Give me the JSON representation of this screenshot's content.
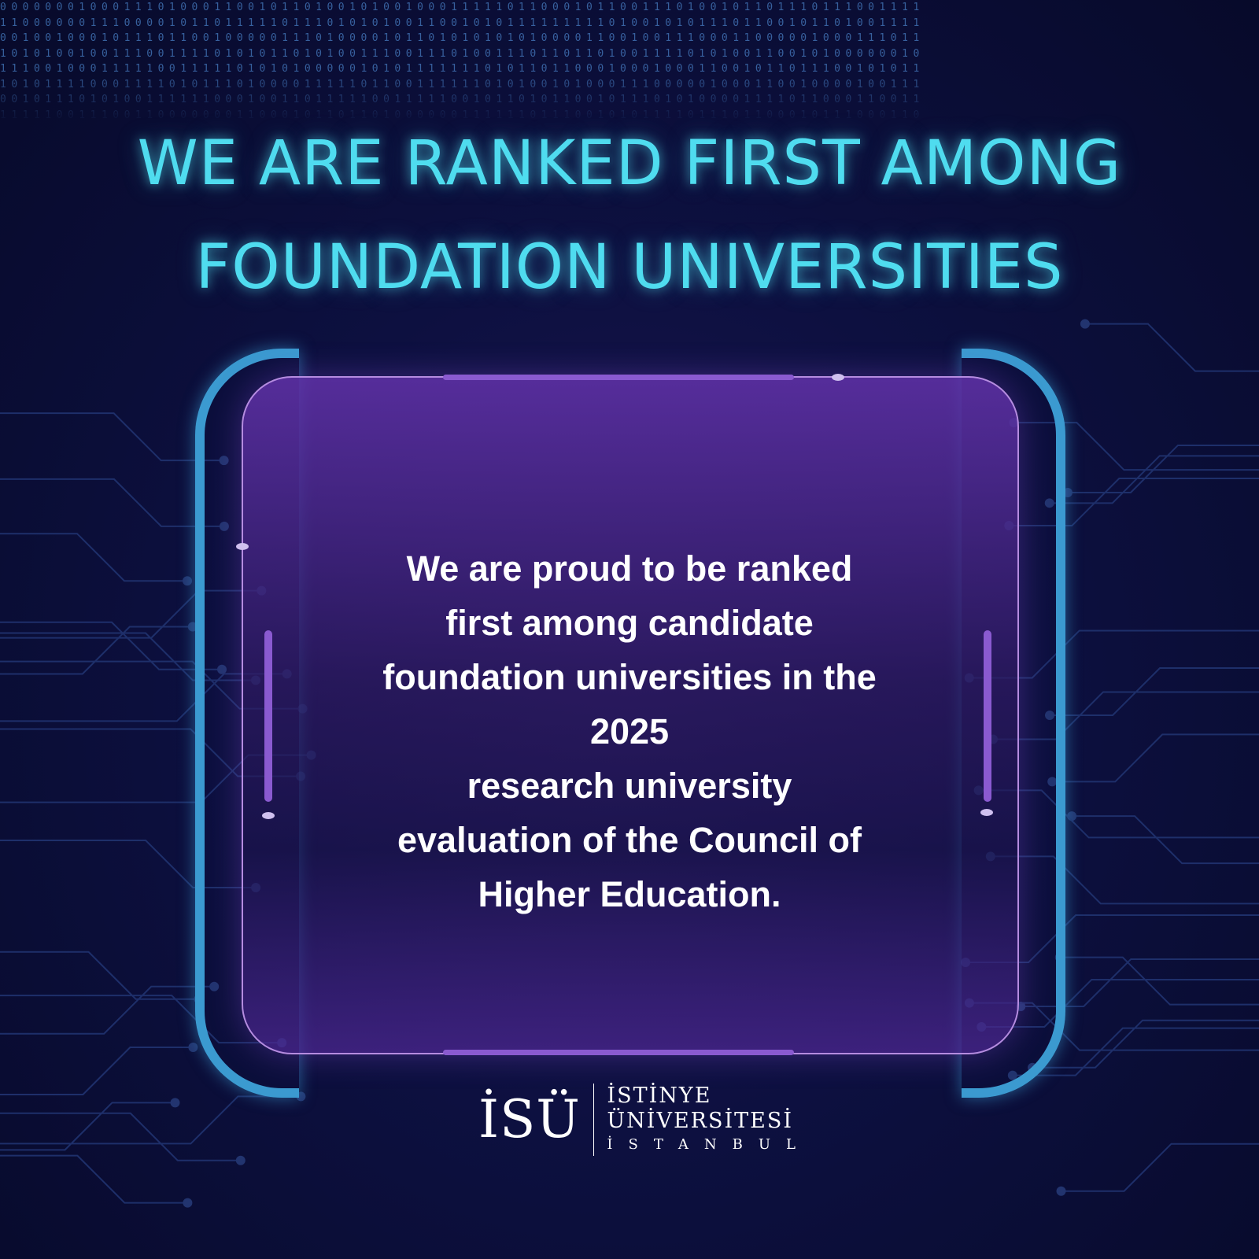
{
  "headline": {
    "line1": "WE ARE RANKED FIRST AMONG",
    "line2": "FOUNDATION UNIVERSITIES"
  },
  "message": {
    "lines": [
      "We are proud to be ranked",
      "first among candidate",
      "foundation universities in the",
      "2025",
      "research university",
      "evaluation of the Council of",
      "Higher Education."
    ]
  },
  "logo": {
    "mark": "İSÜ",
    "name_line1": "İSTİNYE",
    "name_line2": "ÜNİVERSİTESİ",
    "city": "İSTANBUL"
  },
  "colors": {
    "background": "#0a0d33",
    "headline": "#4fdcef",
    "bracket": "#3b9ad0",
    "card_border": "#b58ce0",
    "card_fill": "#4a2a8a"
  }
}
